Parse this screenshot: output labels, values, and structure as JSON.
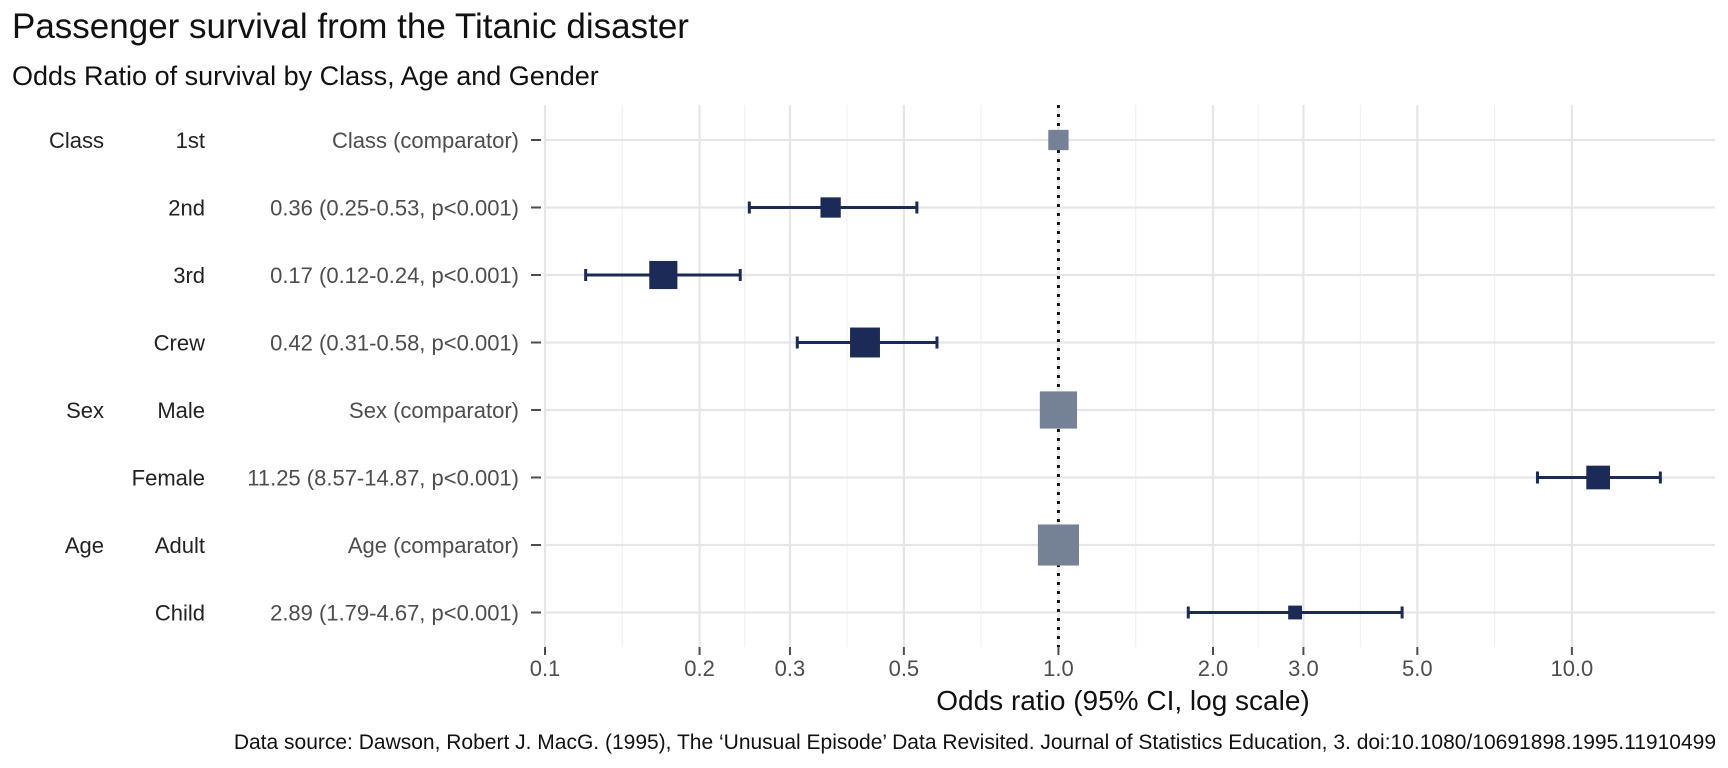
{
  "chart_data": {
    "type": "forest",
    "title": "Passenger survival from the Titanic disaster",
    "subtitle": "Odds Ratio of survival by Class, Age and Gender",
    "xlabel": "Odds ratio (95% CI, log scale)",
    "caption": "Data source: Dawson, Robert J. MacG. (1995), The ‘Unusual Episode’ Data Revisited. Journal of Statistics Education, 3. doi:10.1080/10691898.1995.11910499",
    "x_scale": "log",
    "xlim": [
      0.1,
      19
    ],
    "x_ticks": [
      0.1,
      0.2,
      0.3,
      0.5,
      1.0,
      2.0,
      3.0,
      5.0,
      10.0
    ],
    "x_tick_labels": [
      "0.1",
      "0.2",
      "0.3",
      "0.5",
      "1.0",
      "2.0",
      "3.0",
      "5.0",
      "10.0"
    ],
    "reference_line": 1.0,
    "grid": true,
    "colors": {
      "estimate": "#1b2a56",
      "comparator": "#758296"
    },
    "rows": [
      {
        "group": "Class",
        "level": "1st",
        "label": "Class (comparator)",
        "or": 1.0,
        "lower": null,
        "upper": null,
        "comparator": true,
        "marker_weight": 0.55
      },
      {
        "group": "",
        "level": "2nd",
        "label": "0.36 (0.25-0.53, p<0.001)",
        "or": 0.36,
        "lower": 0.25,
        "upper": 0.53,
        "comparator": false,
        "marker_weight": 0.55
      },
      {
        "group": "",
        "level": "3rd",
        "label": "0.17 (0.12-0.24, p<0.001)",
        "or": 0.17,
        "lower": 0.12,
        "upper": 0.24,
        "comparator": false,
        "marker_weight": 0.85
      },
      {
        "group": "",
        "level": "Crew",
        "label": "0.42 (0.31-0.58, p<0.001)",
        "or": 0.42,
        "lower": 0.31,
        "upper": 0.58,
        "comparator": false,
        "marker_weight": 0.92
      },
      {
        "group": "Sex",
        "level": "Male",
        "label": "Sex (comparator)",
        "or": 1.0,
        "lower": null,
        "upper": null,
        "comparator": true,
        "marker_weight": 1.2
      },
      {
        "group": "",
        "level": "Female",
        "label": "11.25 (8.57-14.87, p<0.001)",
        "or": 11.25,
        "lower": 8.57,
        "upper": 14.87,
        "comparator": false,
        "marker_weight": 0.68
      },
      {
        "group": "Age",
        "level": "Adult",
        "label": "Age (comparator)",
        "or": 1.0,
        "lower": null,
        "upper": null,
        "comparator": true,
        "marker_weight": 1.35
      },
      {
        "group": "",
        "level": "Child",
        "label": "2.89 (1.79-4.67, p<0.001)",
        "or": 2.89,
        "lower": 1.79,
        "upper": 4.67,
        "comparator": false,
        "marker_weight": 0.3
      }
    ]
  }
}
